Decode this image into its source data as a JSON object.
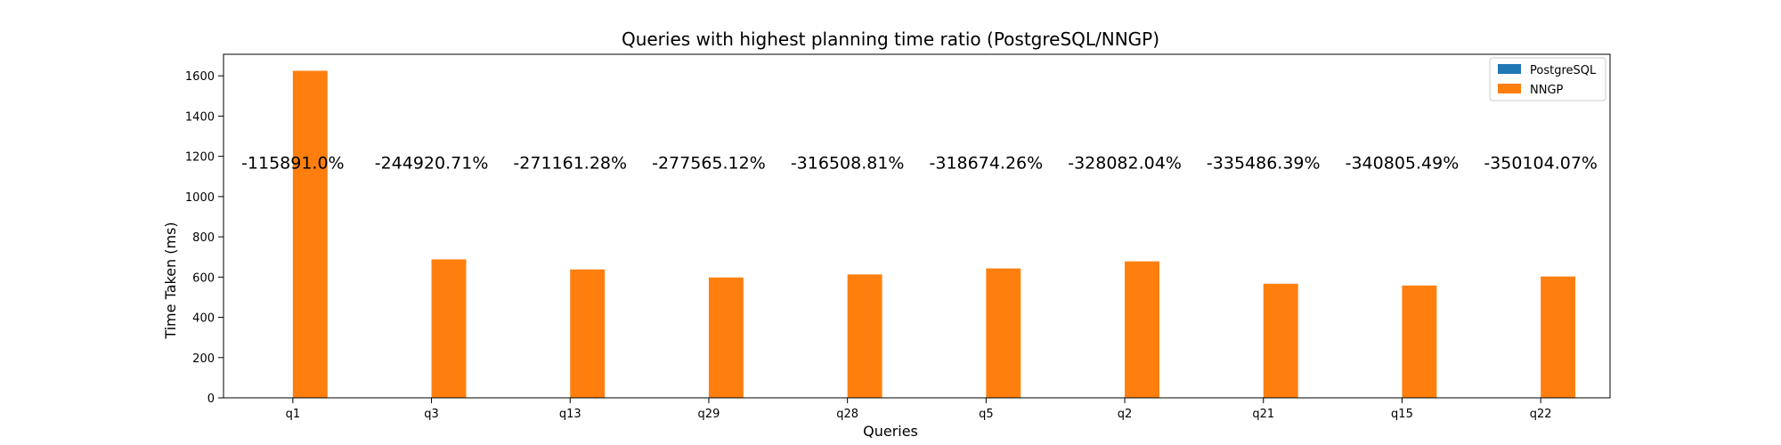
{
  "chart_data": {
    "type": "bar",
    "title": "Queries with highest planning time ratio (PostgreSQL/NNGP)",
    "xlabel": "Queries",
    "ylabel": "Time Taken (ms)",
    "categories": [
      "q1",
      "q3",
      "q13",
      "q29",
      "q28",
      "q5",
      "q2",
      "q21",
      "q15",
      "q22"
    ],
    "series": [
      {
        "name": "PostgreSQL",
        "color": "#1f77b4",
        "values": [
          1.4,
          0.28,
          0.24,
          0.22,
          0.19,
          0.2,
          0.21,
          0.17,
          0.16,
          0.17
        ]
      },
      {
        "name": "NNGP",
        "color": "#ff7f0e",
        "values": [
          1625,
          688,
          638,
          598,
          613,
          643,
          678,
          567,
          558,
          603
        ]
      }
    ],
    "annotations": [
      "-115891.0%",
      "-244920.71%",
      "-271161.28%",
      "-277565.12%",
      "-316508.81%",
      "-318674.26%",
      "-328082.04%",
      "-335486.39%",
      "-340805.49%",
      "-350104.07%"
    ],
    "annotation_y": 1165,
    "ylim": [
      0,
      1707
    ],
    "yticks": [
      0,
      200,
      400,
      600,
      800,
      1000,
      1200,
      1400,
      1600
    ],
    "grid": false,
    "legend_position": "top-right"
  }
}
